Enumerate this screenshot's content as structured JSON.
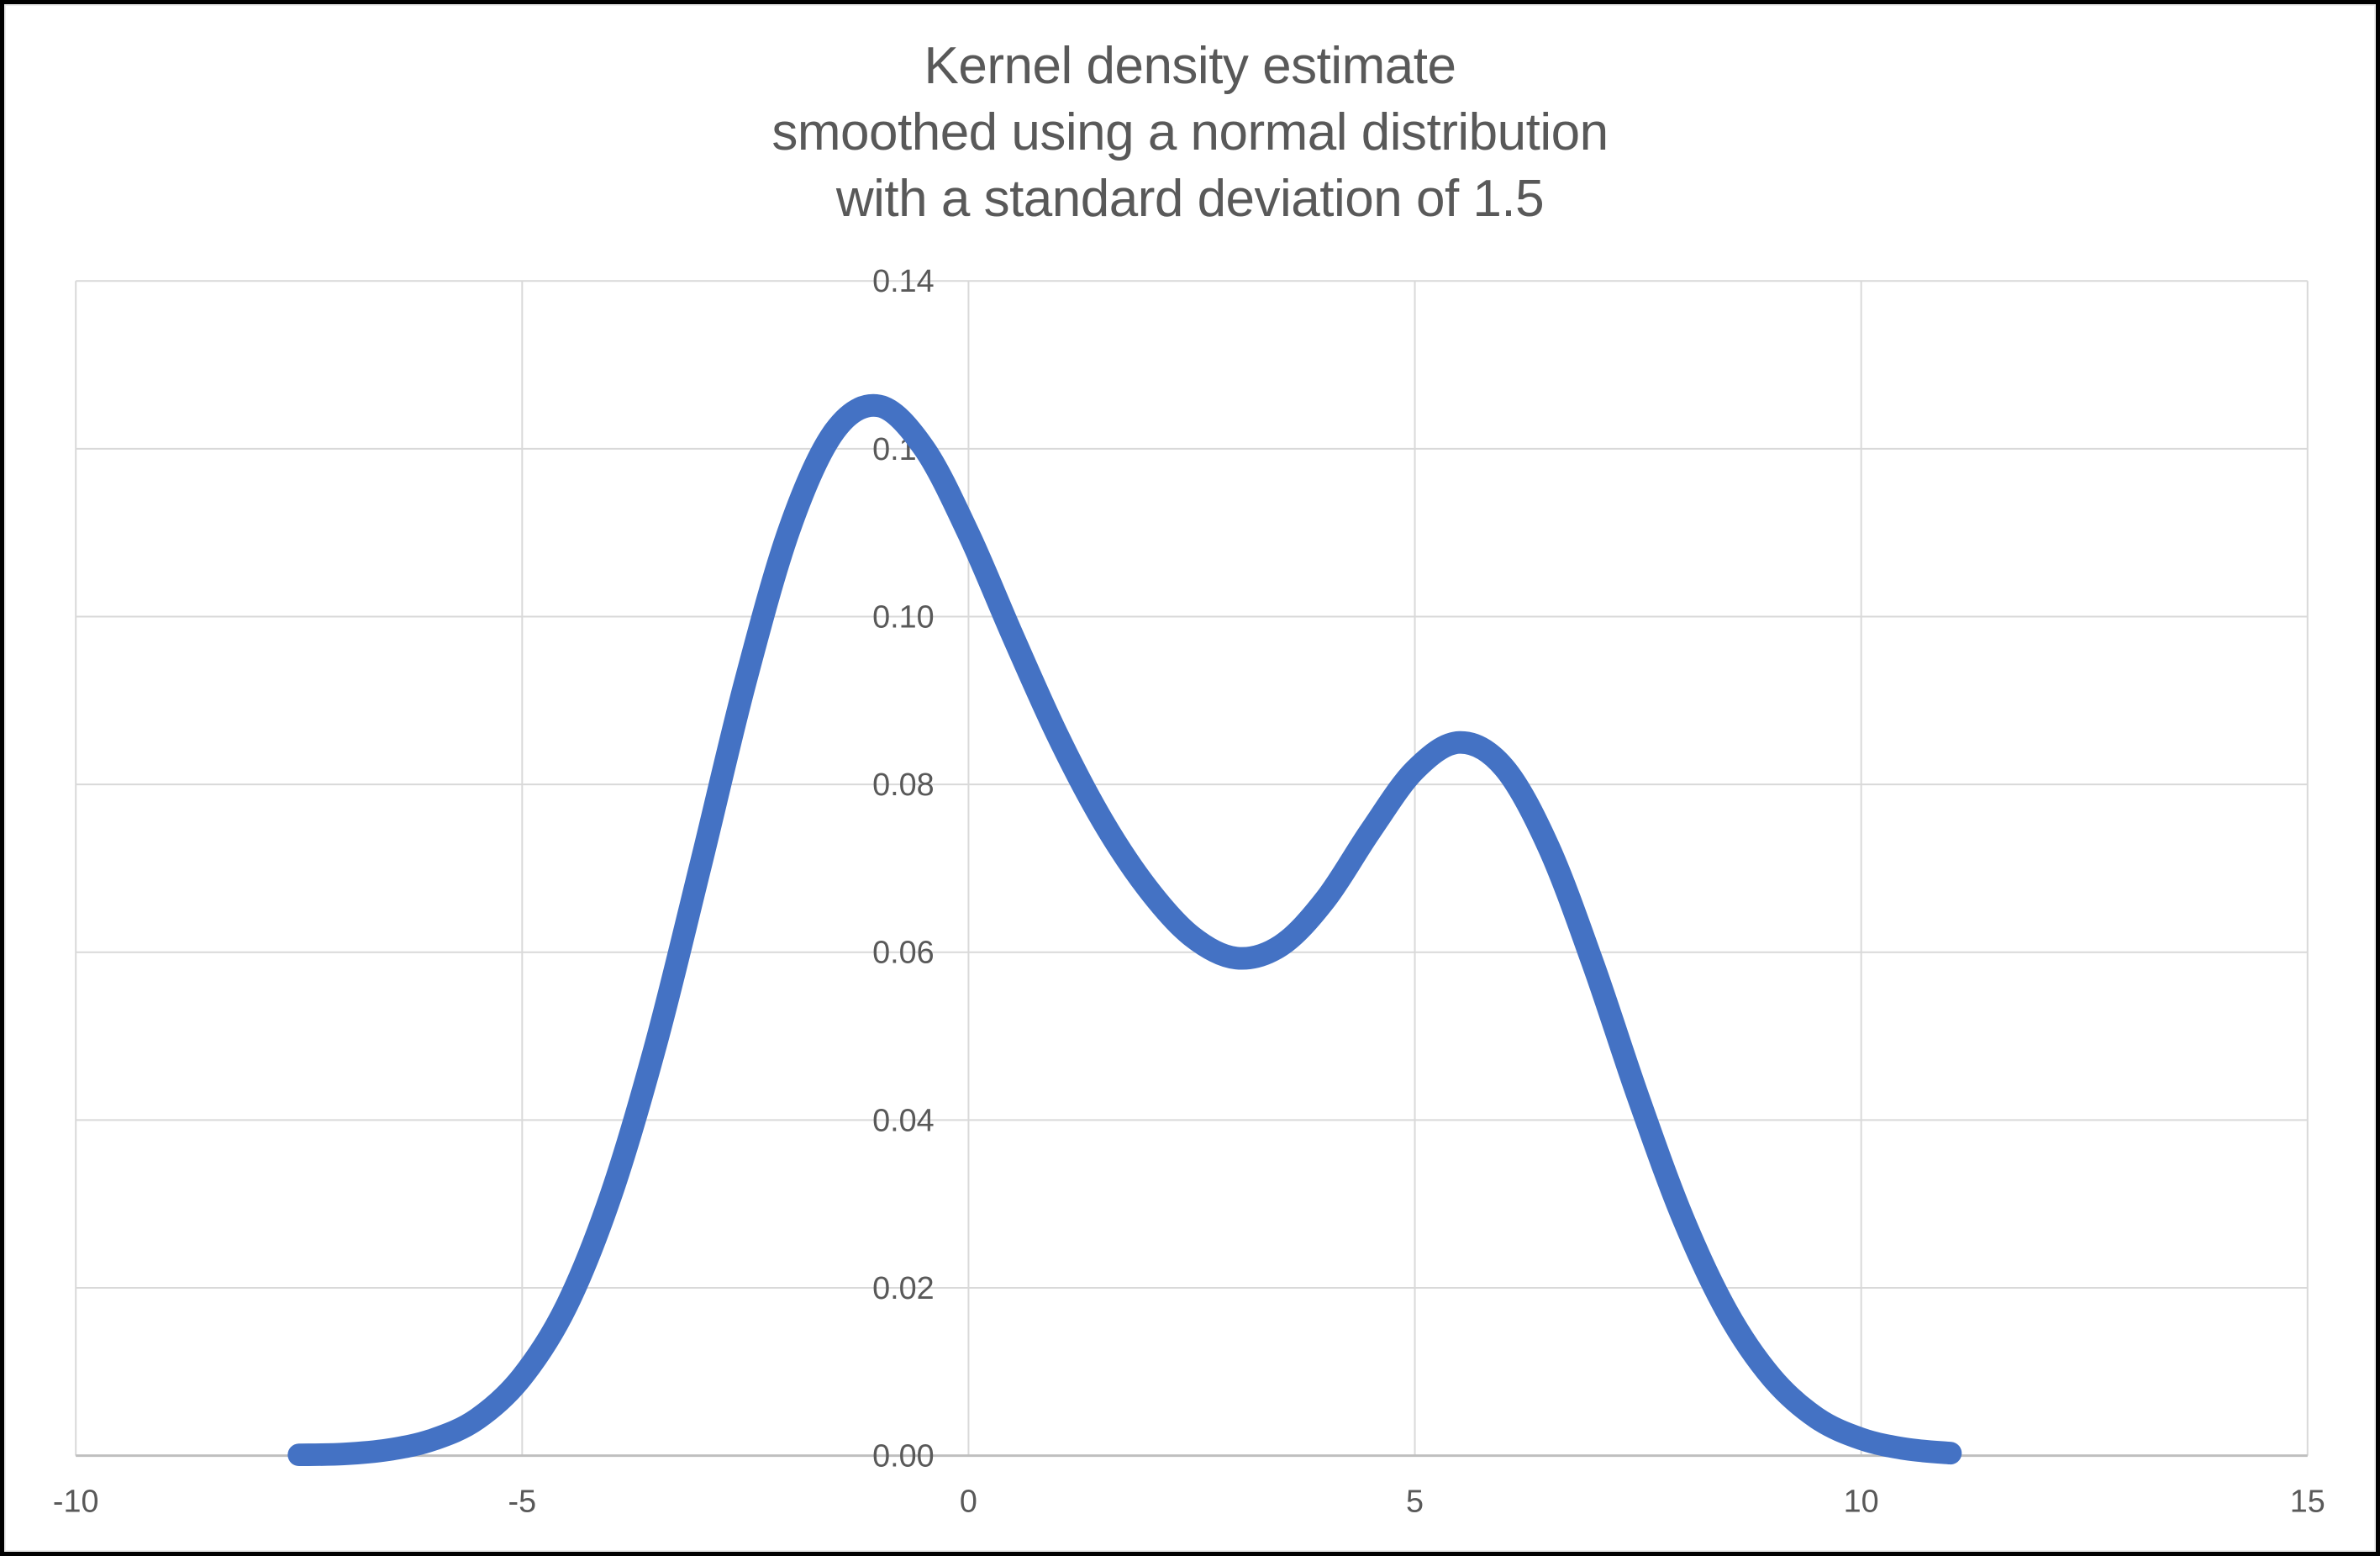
{
  "page": {
    "background": "#FFFFFF",
    "frame_color": "#000000"
  },
  "chart_data": {
    "type": "line",
    "title": "Kernel density estimate smoothed using a normal distribution with a standard deviation of 1.5",
    "title_lines": [
      "Kernel density estimate",
      "smoothed using a normal distribution",
      "with a standard deviation of 1.5"
    ],
    "title_color": "#595959",
    "xlabel": "",
    "ylabel": "",
    "xlim": [
      -10,
      15
    ],
    "ylim": [
      0,
      0.14
    ],
    "x_ticks": [
      -10,
      -5,
      0,
      5,
      10,
      15
    ],
    "x_tick_labels": [
      "-10",
      "-5",
      "0",
      "5",
      "10",
      "15"
    ],
    "y_ticks": [
      0,
      0.02,
      0.04,
      0.06,
      0.08,
      0.1,
      0.12,
      0.14
    ],
    "y_tick_labels": [
      "0.00",
      "0.02",
      "0.04",
      "0.06",
      "0.08",
      "0.10",
      "0.12",
      "0.14"
    ],
    "grid": true,
    "legend_position": "none",
    "gridline_color": "#D9D9D9",
    "axis_line_color": "#BFBFBF",
    "tick_label_color": "#595959",
    "tick_font_size": 38,
    "series": [
      {
        "name": "kernel density estimate",
        "color": "#4472C4",
        "stroke_width": 27,
        "points": [
          [
            -7.5,
            0.0001
          ],
          [
            -7.0,
            0.0002
          ],
          [
            -6.5,
            0.0007
          ],
          [
            -6.0,
            0.0019
          ],
          [
            -5.5,
            0.0044
          ],
          [
            -5.0,
            0.0094
          ],
          [
            -4.5,
            0.0179
          ],
          [
            -4.0,
            0.0312
          ],
          [
            -3.5,
            0.0491
          ],
          [
            -3.0,
            0.0704
          ],
          [
            -2.5,
            0.0922
          ],
          [
            -2.0,
            0.1106
          ],
          [
            -1.5,
            0.1221
          ],
          [
            -1.0,
            0.1251
          ],
          [
            -0.5,
            0.1201
          ],
          [
            0.0,
            0.1099
          ],
          [
            0.5,
            0.0976
          ],
          [
            1.0,
            0.0858
          ],
          [
            1.5,
            0.0757
          ],
          [
            2.0,
            0.0677
          ],
          [
            2.5,
            0.0619
          ],
          [
            3.0,
            0.0593
          ],
          [
            3.5,
            0.0608
          ],
          [
            4.0,
            0.0663
          ],
          [
            4.5,
            0.0744
          ],
          [
            5.0,
            0.0817
          ],
          [
            5.5,
            0.085
          ],
          [
            6.0,
            0.082
          ],
          [
            6.5,
            0.0725
          ],
          [
            7.0,
            0.0585
          ],
          [
            7.5,
            0.0428
          ],
          [
            8.0,
            0.0284
          ],
          [
            8.5,
            0.0171
          ],
          [
            9.0,
            0.0093
          ],
          [
            9.5,
            0.0045
          ],
          [
            10.0,
            0.002
          ],
          [
            10.5,
            0.0008
          ],
          [
            11.0,
            0.0003
          ]
        ]
      }
    ]
  }
}
